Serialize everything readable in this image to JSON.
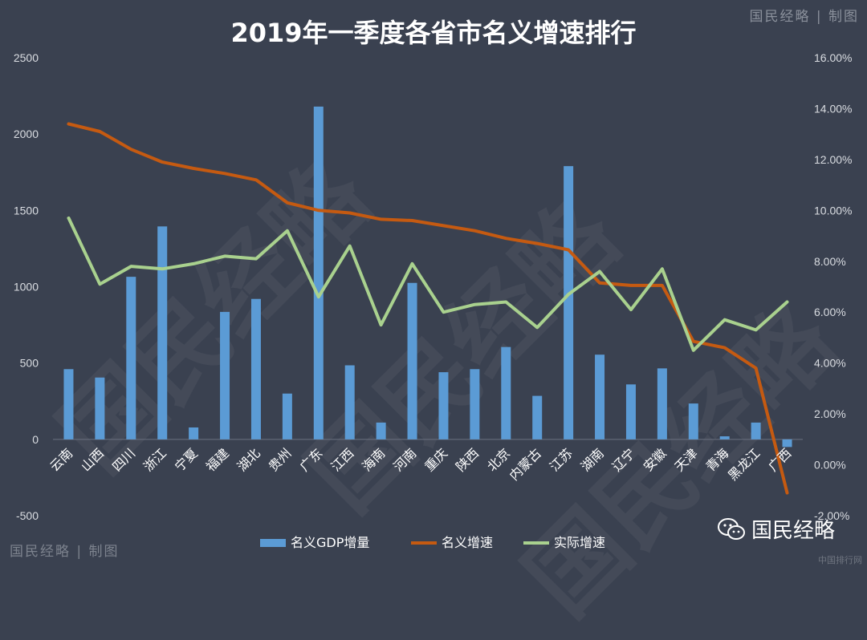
{
  "chart_data": {
    "type": "bar+line",
    "title": "2019年一季度各省市名义增速排行",
    "categories": [
      "云南",
      "山西",
      "四川",
      "浙江",
      "宁夏",
      "福建",
      "湖北",
      "贵州",
      "广东",
      "江西",
      "海南",
      "河南",
      "重庆",
      "陕西",
      "北京",
      "内蒙古",
      "江苏",
      "湖南",
      "辽宁",
      "安徽",
      "天津",
      "青海",
      "黑龙江",
      "广西"
    ],
    "series": [
      {
        "name": "名义GDP增量",
        "kind": "bar",
        "axis": "left",
        "color": "#5b9bd5",
        "values": [
          460,
          405,
          1065,
          1395,
          78,
          835,
          920,
          300,
          2180,
          485,
          110,
          1025,
          440,
          460,
          605,
          285,
          1790,
          555,
          360,
          465,
          235,
          20,
          110,
          -50
        ]
      },
      {
        "name": "名义增速",
        "kind": "line",
        "axis": "right",
        "color": "#c55a11",
        "values": [
          13.4,
          13.1,
          12.4,
          11.9,
          11.65,
          11.45,
          11.2,
          10.3,
          10.0,
          9.9,
          9.65,
          9.6,
          9.4,
          9.2,
          8.9,
          8.7,
          8.45,
          7.15,
          7.05,
          7.05,
          4.85,
          4.6,
          3.8,
          -1.1
        ]
      },
      {
        "name": "实际增速",
        "kind": "line",
        "axis": "right",
        "color": "#a9d18e",
        "values": [
          9.7,
          7.1,
          7.8,
          7.7,
          7.9,
          8.2,
          8.1,
          9.2,
          6.6,
          8.6,
          5.5,
          7.9,
          6.0,
          6.3,
          6.4,
          5.4,
          6.7,
          7.6,
          6.1,
          7.7,
          4.5,
          5.7,
          5.3,
          6.4
        ]
      }
    ],
    "y_left": {
      "min": -500,
      "max": 2500,
      "step": 500,
      "ticks": [
        "-500",
        "0",
        "500",
        "1000",
        "1500",
        "2000",
        "2500"
      ]
    },
    "y_right": {
      "min": -2,
      "max": 16,
      "step": 2,
      "ticks": [
        "-2.00%",
        "0.00%",
        "2.00%",
        "4.00%",
        "6.00%",
        "8.00%",
        "10.00%",
        "12.00%",
        "14.00%",
        "16.00%"
      ]
    },
    "grid": false,
    "legend_position": "bottom"
  },
  "branding": {
    "top_right": "国民经略 | 制图",
    "bottom_left": "国民经略 | 制图",
    "wechat_name": "国民经略",
    "site": "中国排行网",
    "watermark": "国民经略"
  }
}
